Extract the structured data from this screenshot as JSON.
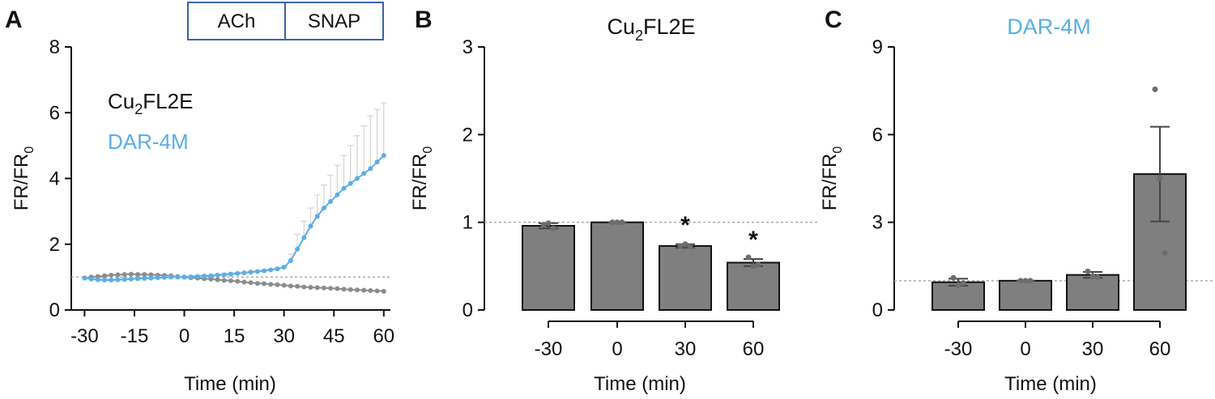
{
  "colors": {
    "cu2fl2e": "#8c8c8c",
    "dar4m": "#5aaee8",
    "bar_fill": "#7f7f7f",
    "bar_stroke": "#111111",
    "ref_line": "#aaaaaa",
    "box_stroke": "#3a62b0"
  },
  "chart_data": [
    {
      "panel_label": "A",
      "type": "line",
      "xlabel": "Time (min)",
      "ylabel": "FR/FR0",
      "xlim": [
        -34,
        62
      ],
      "ylim": [
        0,
        8
      ],
      "xticks": [
        "-30",
        "-15",
        "0",
        "15",
        "30",
        "45",
        "60"
      ],
      "yticks": [
        "0",
        "2",
        "4",
        "6",
        "8"
      ],
      "reference_line": 1,
      "treatment_boxes": [
        {
          "label": "ACh",
          "x_range": [
            -30,
            0
          ]
        },
        {
          "label": "SNAP",
          "x_range": [
            30,
            60
          ]
        }
      ],
      "legend": [
        {
          "base": "Cu",
          "sub": "2",
          "rest": "FL2E",
          "color_key": "cu2fl2e"
        },
        {
          "base": "DAR-4M",
          "sub": "",
          "rest": "",
          "color_key": "dar4m"
        }
      ],
      "series": [
        {
          "name": "Cu2FL2E",
          "color_key": "cu2fl2e",
          "x": [
            -30,
            -28,
            -26,
            -24,
            -22,
            -20,
            -18,
            -16,
            -14,
            -12,
            -10,
            -8,
            -6,
            -4,
            -2,
            0,
            2,
            4,
            6,
            8,
            10,
            12,
            14,
            16,
            18,
            20,
            22,
            24,
            26,
            28,
            30,
            32,
            34,
            36,
            38,
            40,
            42,
            44,
            46,
            48,
            50,
            52,
            54,
            56,
            58,
            60
          ],
          "y": [
            0.98,
            1.0,
            1.02,
            1.04,
            1.06,
            1.07,
            1.08,
            1.09,
            1.08,
            1.08,
            1.07,
            1.06,
            1.05,
            1.04,
            1.02,
            1.0,
            0.98,
            0.97,
            0.95,
            0.94,
            0.92,
            0.9,
            0.89,
            0.87,
            0.85,
            0.83,
            0.81,
            0.8,
            0.78,
            0.77,
            0.75,
            0.73,
            0.72,
            0.7,
            0.69,
            0.68,
            0.67,
            0.66,
            0.65,
            0.63,
            0.62,
            0.61,
            0.6,
            0.59,
            0.58,
            0.57
          ]
        },
        {
          "name": "DAR-4M",
          "color_key": "dar4m",
          "x": [
            -30,
            -28,
            -26,
            -24,
            -22,
            -20,
            -18,
            -16,
            -14,
            -12,
            -10,
            -8,
            -6,
            -4,
            -2,
            0,
            2,
            4,
            6,
            8,
            10,
            12,
            14,
            16,
            18,
            20,
            22,
            24,
            26,
            28,
            30,
            32,
            34,
            36,
            38,
            40,
            42,
            44,
            46,
            48,
            50,
            52,
            54,
            56,
            58,
            60
          ],
          "y": [
            0.97,
            0.94,
            0.92,
            0.91,
            0.91,
            0.92,
            0.93,
            0.94,
            0.95,
            0.96,
            0.97,
            0.98,
            0.99,
            1.0,
            1.0,
            1.0,
            1.01,
            1.02,
            1.03,
            1.04,
            1.06,
            1.07,
            1.09,
            1.11,
            1.13,
            1.15,
            1.17,
            1.19,
            1.22,
            1.25,
            1.3,
            1.5,
            1.85,
            2.2,
            2.55,
            2.85,
            3.1,
            3.3,
            3.5,
            3.7,
            3.85,
            4.0,
            4.15,
            4.3,
            4.5,
            4.7
          ],
          "error_upper": [
            1.0,
            0.97,
            0.95,
            0.94,
            0.94,
            0.95,
            0.96,
            0.97,
            0.98,
            0.99,
            1.0,
            1.01,
            1.02,
            1.03,
            1.03,
            1.02,
            1.04,
            1.05,
            1.06,
            1.07,
            1.09,
            1.1,
            1.12,
            1.14,
            1.16,
            1.18,
            1.2,
            1.22,
            1.25,
            1.28,
            1.33,
            1.7,
            2.3,
            2.7,
            3.1,
            3.5,
            3.8,
            4.1,
            4.4,
            4.7,
            5.0,
            5.3,
            5.6,
            5.9,
            6.1,
            6.3
          ]
        }
      ]
    },
    {
      "panel_label": "B",
      "type": "bar",
      "title": {
        "base": "Cu",
        "sub": "2",
        "rest": "FL2E"
      },
      "xlabel": "Time (min)",
      "ylabel": "FR/FR0",
      "categories": [
        "-30",
        "0",
        "30",
        "60"
      ],
      "values": [
        0.96,
        1.0,
        0.73,
        0.54
      ],
      "errors": [
        0.03,
        0.0,
        0.02,
        0.04
      ],
      "points": [
        [
          0.97,
          0.99,
          0.93
        ],
        [
          1.0,
          1.0,
          1.0
        ],
        [
          0.73,
          0.75,
          0.72
        ],
        [
          0.6,
          0.5,
          0.52
        ]
      ],
      "significance": [
        "",
        "",
        "*",
        "*"
      ],
      "ylim": [
        0,
        3
      ],
      "yticks": [
        "0",
        "1",
        "2",
        "3"
      ],
      "reference_line": 1
    },
    {
      "panel_label": "C",
      "type": "bar",
      "title": {
        "base": "DAR-4M",
        "sub": "",
        "rest": ""
      },
      "title_color_key": "dar4m",
      "xlabel": "Time (min)",
      "ylabel": "FR/FR0",
      "categories": [
        "-30",
        "0",
        "30",
        "60"
      ],
      "values": [
        0.95,
        1.0,
        1.2,
        4.65
      ],
      "errors": [
        0.12,
        0.0,
        0.1,
        1.62
      ],
      "points": [
        [
          1.1,
          0.85,
          0.92
        ],
        [
          1.0,
          1.0,
          1.0
        ],
        [
          1.32,
          1.15,
          1.12
        ],
        [
          7.55,
          4.5,
          1.95
        ]
      ],
      "significance": [
        "",
        "",
        "",
        ""
      ],
      "ylim": [
        0,
        9
      ],
      "yticks": [
        "0",
        "3",
        "6",
        "9"
      ],
      "reference_line": 1
    }
  ]
}
